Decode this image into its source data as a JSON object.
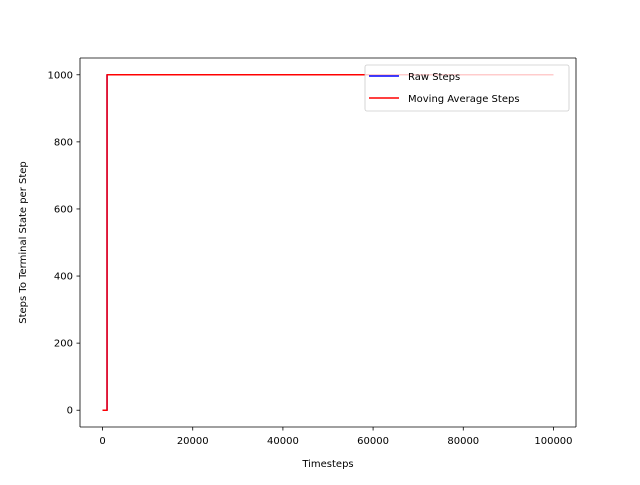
{
  "chart_data": {
    "type": "line",
    "title": "",
    "xlabel": "Timesteps",
    "ylabel": "Steps To Terminal State per Step",
    "xlim": [
      -5000,
      105000
    ],
    "ylim": [
      -50,
      1050
    ],
    "xticks": [
      0,
      20000,
      40000,
      60000,
      80000,
      100000
    ],
    "xtick_labels": [
      "0",
      "20000",
      "40000",
      "60000",
      "80000",
      "100000"
    ],
    "yticks": [
      0,
      200,
      400,
      600,
      800,
      1000
    ],
    "ytick_labels": [
      "0",
      "200",
      "400",
      "600",
      "800",
      "1000"
    ],
    "grid": false,
    "legend_position": "upper right",
    "series": [
      {
        "name": "Raw Steps",
        "color": "#0000ff",
        "x": [
          0,
          1000,
          1000,
          100000
        ],
        "y": [
          0,
          0,
          1000,
          1000
        ]
      },
      {
        "name": "Moving Average Steps",
        "color": "#ff0000",
        "x": [
          0,
          1000,
          1000,
          100000
        ],
        "y": [
          0,
          0,
          1000,
          1000
        ]
      }
    ]
  }
}
